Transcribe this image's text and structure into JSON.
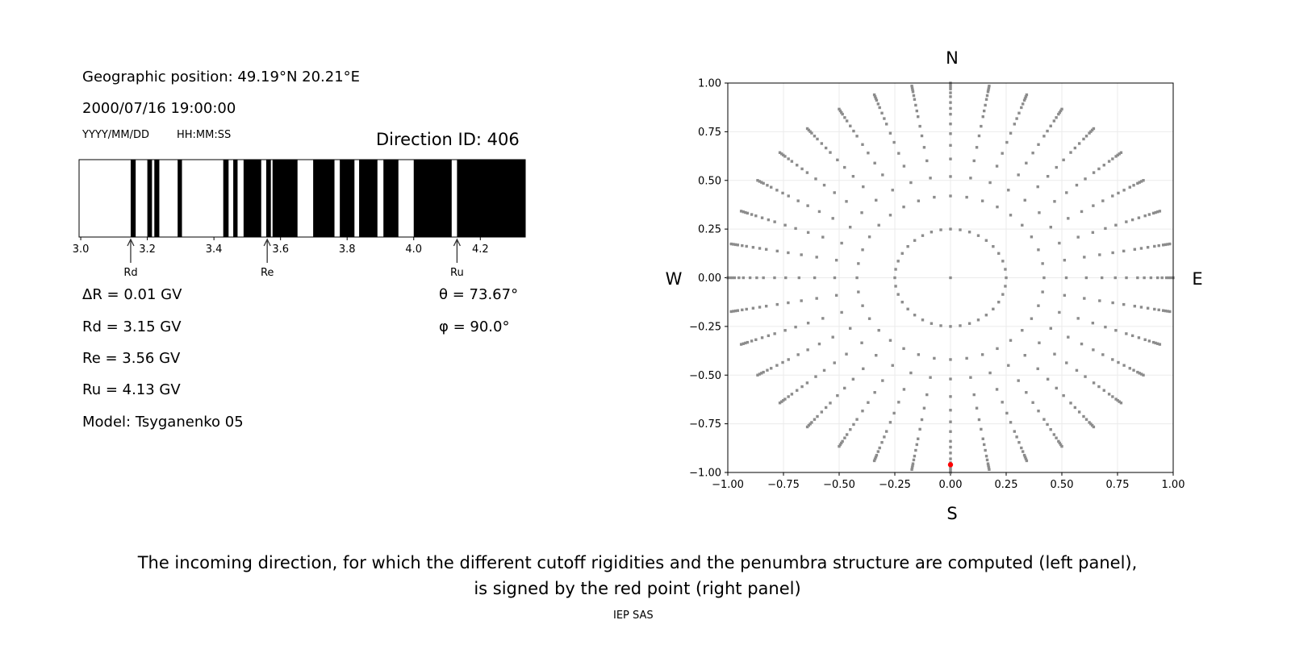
{
  "left_panel": {
    "geo_position": "Geographic position: 49.19°N 20.21°E",
    "datetime": "2000/07/16 19:00:00",
    "date_format": "YYYY/MM/DD",
    "time_format": "HH:MM:SS",
    "direction_id": "Direction ID: 406",
    "delta_r": "ΔR = 0.01 GV",
    "rd": "Rd = 3.15 GV",
    "re": "Re = 3.56 GV",
    "ru": "Ru = 4.13 GV",
    "model": "Model: Tsyganenko 05",
    "theta": "θ = 73.67°",
    "phi": "φ = 90.0°"
  },
  "caption": {
    "line1": "The incoming direction, for which the different cutoff rigidities and the penumbra structure are computed (left panel),",
    "line2": "is signed by the red point (right panel)"
  },
  "footer": "IEP SAS",
  "chart_data": [
    {
      "type": "penumbra-bar",
      "xlim": [
        2.995,
        4.335
      ],
      "xticks": [
        3.0,
        3.2,
        3.4,
        3.6,
        3.8,
        4.0,
        4.2
      ],
      "xtick_labels": [
        "3.0",
        "3.2",
        "3.4",
        "3.6",
        "3.8",
        "4.0",
        "4.2"
      ],
      "forbidden_bands_black": [
        [
          3.15,
          3.165
        ],
        [
          3.2,
          3.214
        ],
        [
          3.221,
          3.236
        ],
        [
          3.291,
          3.304
        ],
        [
          3.428,
          3.444
        ],
        [
          3.458,
          3.471
        ],
        [
          3.489,
          3.542
        ],
        [
          3.557,
          3.571
        ],
        [
          3.576,
          3.651
        ],
        [
          3.698,
          3.762
        ],
        [
          3.778,
          3.822
        ],
        [
          3.836,
          3.891
        ],
        [
          3.909,
          3.954
        ],
        [
          4.0,
          4.114
        ],
        [
          4.13,
          4.335
        ]
      ],
      "annotations": [
        {
          "label": "Rd",
          "x": 3.15
        },
        {
          "label": "Re",
          "x": 3.56
        },
        {
          "label": "Ru",
          "x": 4.13
        }
      ],
      "colors": {
        "forbidden": "#000000",
        "allowed": "#ffffff"
      }
    },
    {
      "type": "scatter",
      "xlim": [
        -1,
        1
      ],
      "ylim": [
        -1,
        1
      ],
      "xticks": [
        -1.0,
        -0.75,
        -0.5,
        -0.25,
        0.0,
        0.25,
        0.5,
        0.75,
        1.0
      ],
      "xtick_labels": [
        "−1.00",
        "−0.75",
        "−0.50",
        "−0.25",
        "0.00",
        "0.25",
        "0.50",
        "0.75",
        "1.00"
      ],
      "yticks": [
        -1.0,
        -0.75,
        -0.5,
        -0.25,
        0.0,
        0.25,
        0.5,
        0.75,
        1.0
      ],
      "ytick_labels": [
        "−1.00",
        "−0.75",
        "−0.50",
        "−0.25",
        "0.00",
        "0.25",
        "0.50",
        "0.75",
        "1.00"
      ],
      "grid": true,
      "compass": {
        "north": "N",
        "south": "S",
        "west": "W",
        "east": "E"
      },
      "direction_grid": {
        "center": [
          0,
          0
        ],
        "inner_ring_radius": 0.25,
        "inner_ring_azimuth_step_deg": 10,
        "spoke_azimuth_step_deg": 10,
        "spoke_radii": [
          0.42,
          0.52,
          0.61,
          0.68,
          0.74,
          0.79,
          0.84,
          0.87,
          0.9,
          0.93,
          0.95,
          0.97,
          0.98,
          0.99,
          1.0
        ]
      },
      "highlighted_point": {
        "x": 0.0,
        "y": -0.96
      },
      "colors": {
        "grid_points": "#8c8c8c",
        "highlight": "#ff0000",
        "gridlines": "#ebebeb"
      }
    }
  ]
}
